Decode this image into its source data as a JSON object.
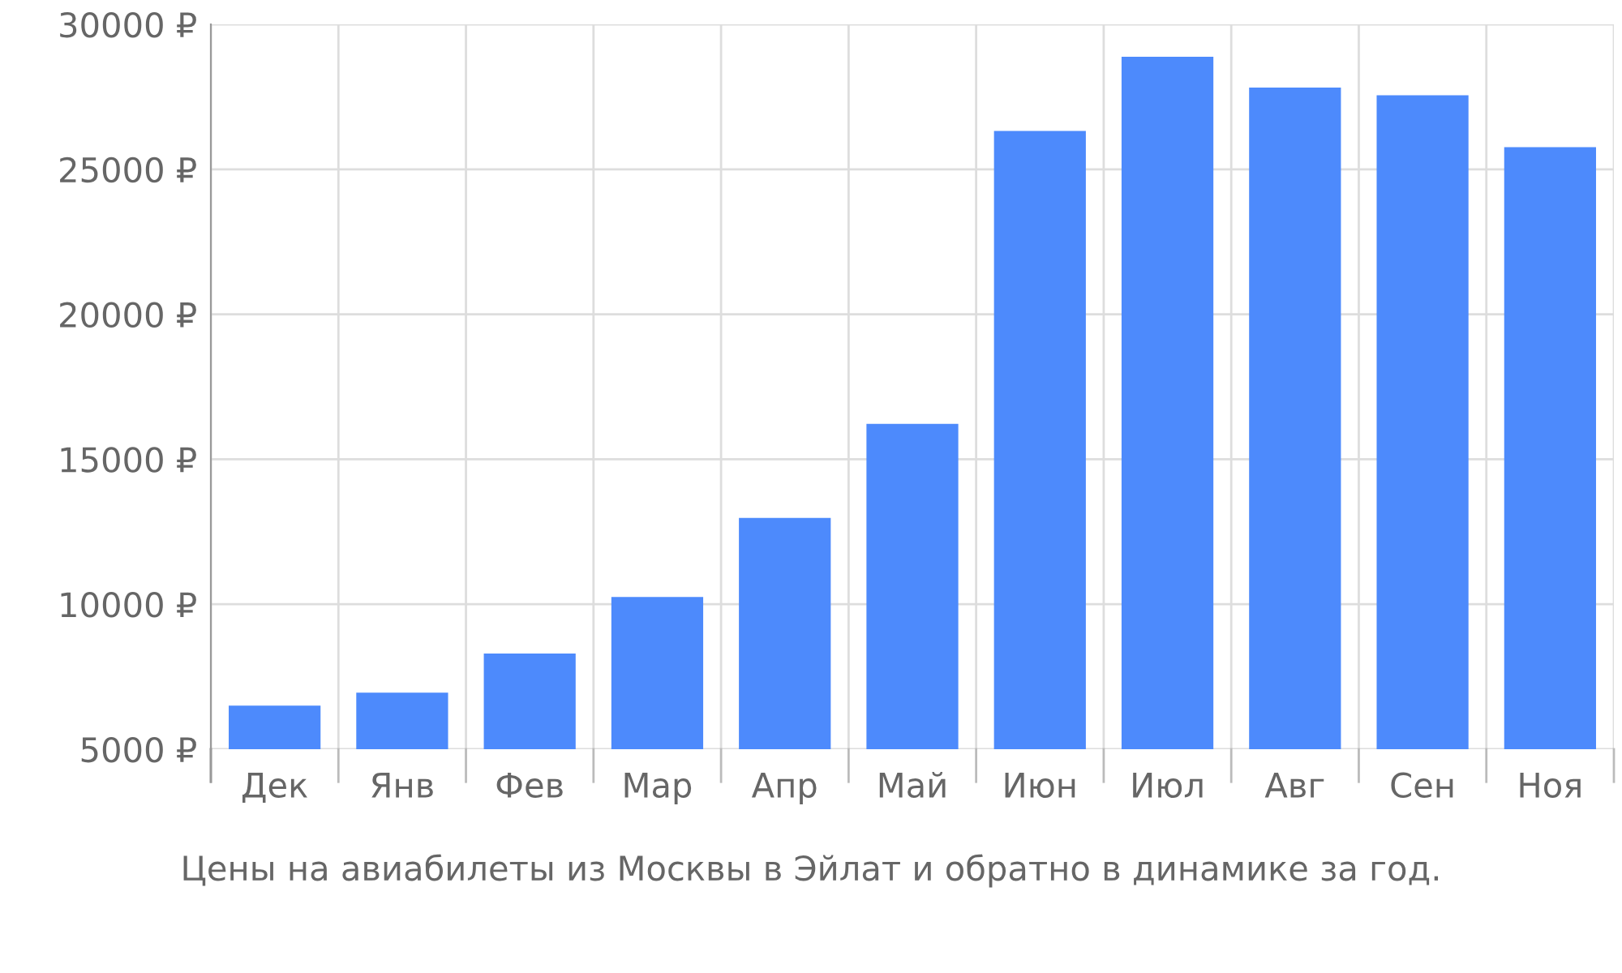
{
  "chart_data": {
    "type": "bar",
    "categories": [
      "Дек",
      "Янв",
      "Фев",
      "Мар",
      "Апр",
      "Май",
      "Июн",
      "Июл",
      "Авг",
      "Сен",
      "Ноя"
    ],
    "values": [
      6500,
      6950,
      8300,
      10250,
      12980,
      16220,
      26320,
      28880,
      27820,
      27550,
      25760
    ],
    "color": "#4d8afc",
    "ylim": [
      5000,
      30000
    ],
    "yticks": [
      {
        "value": 5000,
        "label": "5000 ₽"
      },
      {
        "value": 10000,
        "label": "10000 ₽"
      },
      {
        "value": 15000,
        "label": "15000 ₽"
      },
      {
        "value": 20000,
        "label": "20000 ₽"
      },
      {
        "value": 25000,
        "label": "25000 ₽"
      },
      {
        "value": 30000,
        "label": "30000 ₽"
      }
    ],
    "grid": true,
    "annotations": [
      "Цены на авиабилеты из Москвы в Эйлат и обратно в динамике за год."
    ]
  }
}
